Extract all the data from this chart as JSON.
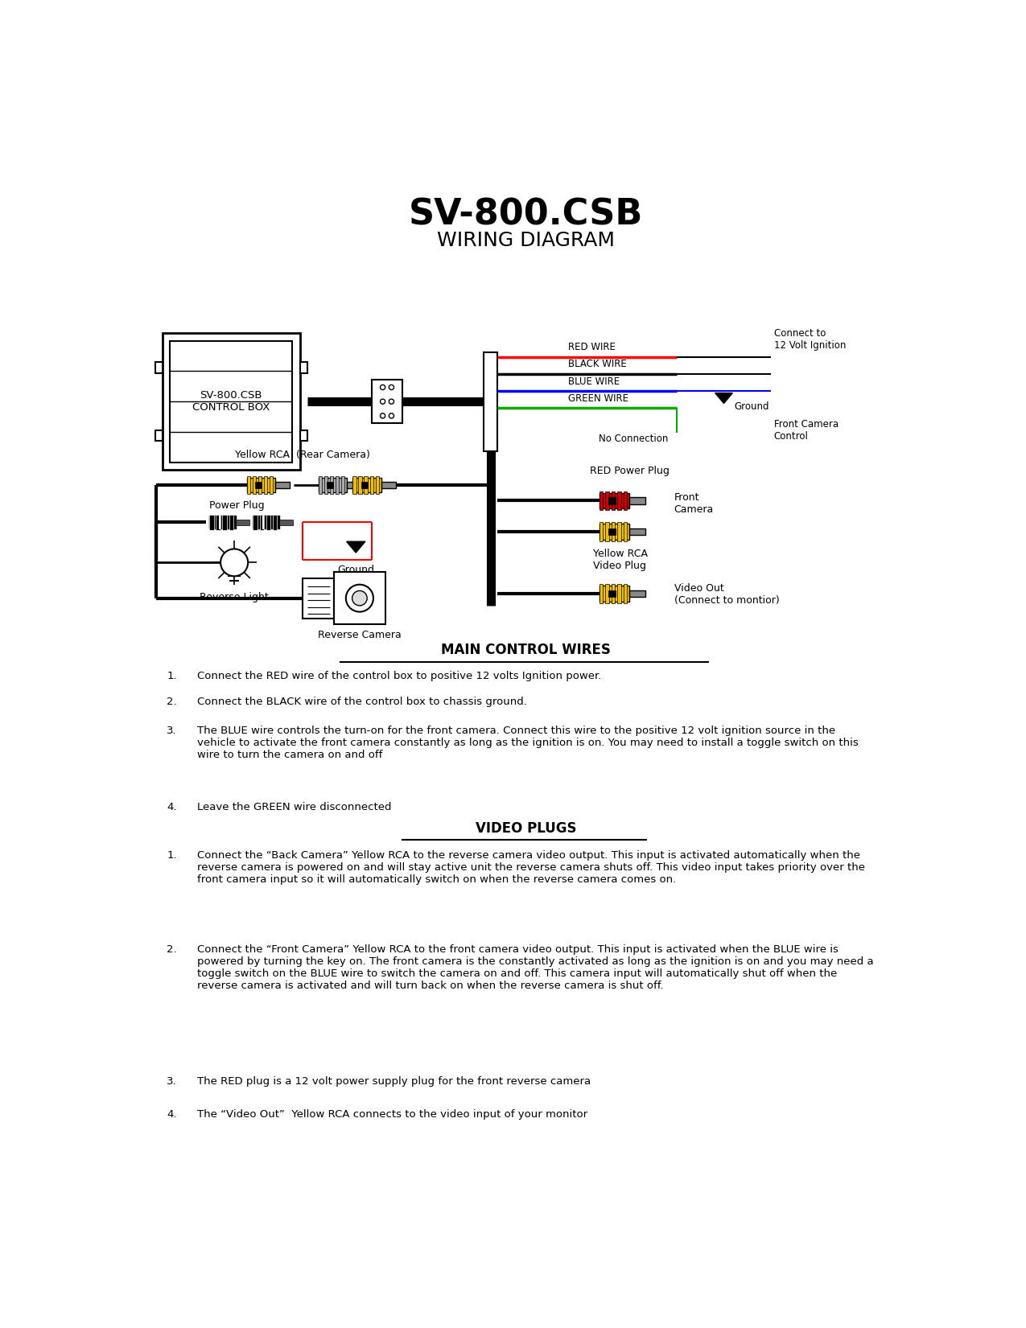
{
  "title": "SV-800.CSB",
  "subtitle": "WIRING DIAGRAM",
  "bg_color": "#ffffff",
  "title_fontsize": 32,
  "subtitle_fontsize": 18,
  "section1_title": "MAIN CONTROL WIRES",
  "section2_title": "VIDEO PLUGS",
  "control_box_label": "SV-800.CSB\nCONTROL BOX",
  "wire_labels": [
    "RED WIRE",
    "BLACK WIRE",
    "BLUE WIRE",
    "GREEN WIRE"
  ],
  "wire_colors": [
    "#ff0000",
    "#000000",
    "#0000ff",
    "#00aa00"
  ],
  "annotations_right": [
    "Connect to\n12 Volt Ignition",
    "Ground",
    "Front Camera\nControl",
    "No Connection"
  ],
  "rca_yellow_label": "Yellow RCA  (Rear Camera)",
  "power_plug_label": "Power Plug",
  "reverse_light_label": "Reverse Light",
  "ground_label": "Ground",
  "red_power_plug_label": "RED Power Plug",
  "front_camera_label": "Front\nCamera",
  "yellow_rca_video_label": "Yellow RCA\nVideo Plug",
  "video_out_label": "Video Out\n(Connect to montior)",
  "reverse_camera_label": "Reverse Camera",
  "mcw1": "Connect the RED wire of the control box to positive 12 volts Ignition power.",
  "mcw2": "Connect the BLACK wire of the control box to chassis ground.",
  "mcw3": "The BLUE wire controls the turn-on for the front camera. Connect this wire to the positive 12 volt ignition source in the\nvehicle to activate the front camera constantly as long as the ignition is on. You may need to install a toggle switch on this\nwire to turn the camera on and off",
  "mcw4": "Leave the GREEN wire disconnected",
  "vp1": "Connect the “Back Camera” Yellow RCA to the reverse camera video output. This input is activated automatically when the\nreverse camera is powered on and will stay active unit the reverse camera shuts off. This video input takes priority over the\nfront camera input so it will automatically switch on when the reverse camera comes on.",
  "vp2": "Connect the “Front Camera” Yellow RCA to the front camera video output. This input is activated when the BLUE wire is\npowered by turning the key on. The front camera is the constantly activated as long as the ignition is on and you may need a\ntoggle switch on the BLUE wire to switch the camera on and off. This camera input will automatically shut off when the\nreverse camera is activated and will turn back on when the reverse camera is shut off.",
  "vp3": "The RED plug is a 12 volt power supply plug for the front reverse camera",
  "vp4": "The “Video Out”  Yellow RCA connects to the video input of your monitor"
}
